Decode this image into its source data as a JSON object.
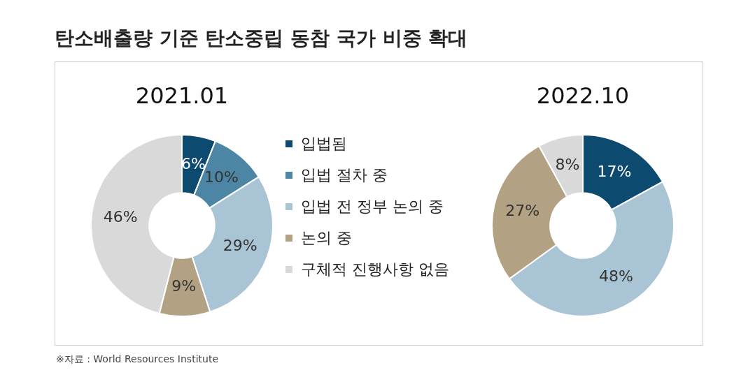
{
  "chart_data": {
    "type": "donut",
    "title": "탄소배출량 기준 탄소중립 동참 국가 비중 확대",
    "categories": [
      "입법됨",
      "입법 절차 중",
      "입법 전 정부 논의 중",
      "논의 중",
      "구체적 진행사항 없음"
    ],
    "colors": [
      "#0d4a70",
      "#4d86a5",
      "#a9c5d5",
      "#b2a283",
      "#d9d9d9"
    ],
    "series": [
      {
        "name": "2021.01",
        "values": [
          6,
          10,
          29,
          9,
          46
        ],
        "value_labels": [
          "6%",
          "10%",
          "29%",
          "9%",
          "46%"
        ]
      },
      {
        "name": "2022.10",
        "values": [
          17,
          0,
          48,
          27,
          8
        ],
        "value_labels": [
          "17%",
          null,
          "48%",
          "27%",
          "8%"
        ]
      }
    ],
    "legend": "right",
    "annotations": [
      "※자료 : World Resources Institute"
    ]
  }
}
